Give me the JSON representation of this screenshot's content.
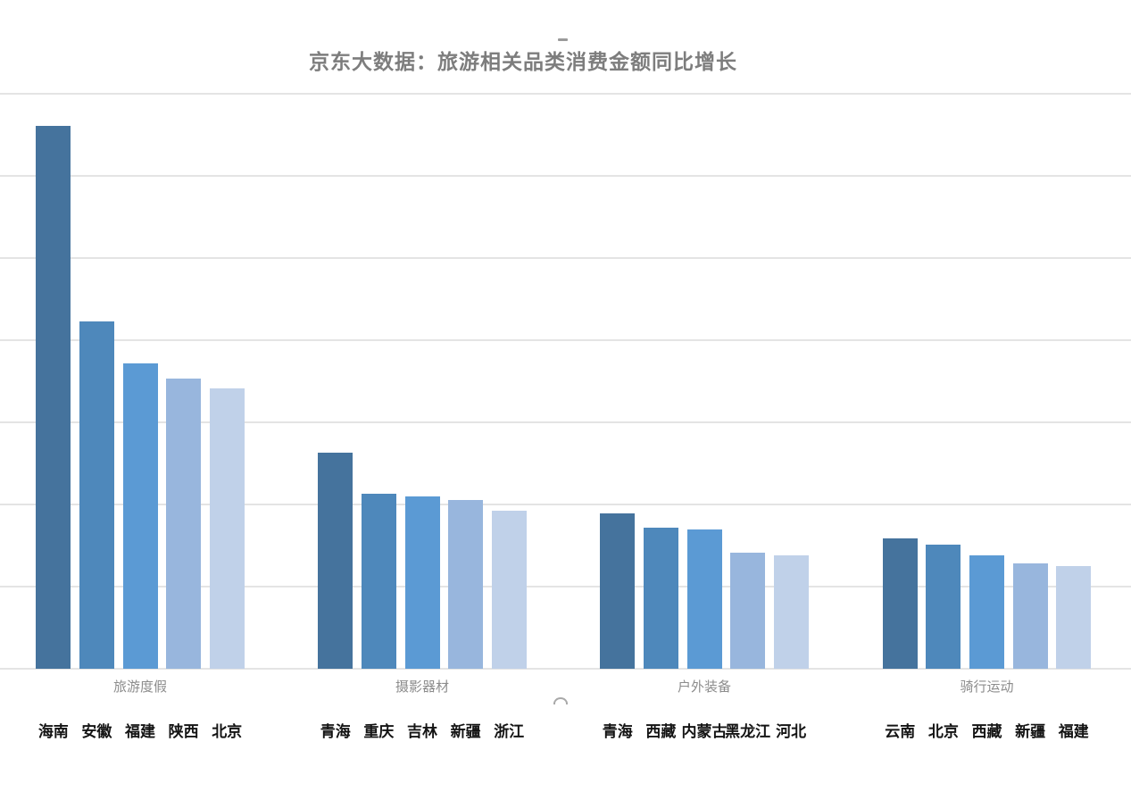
{
  "chart": {
    "title": "京东大数据：旅游相关品类消费金额同比增长",
    "title_color": "#7d7d7d",
    "background_color": "#ffffff",
    "gridline_color": "#e4e4e4",
    "category_label_color": "#8c8c8c",
    "bar_label_color": "#141414",
    "bar_palette": [
      "#45739D",
      "#4E88BB",
      "#5B9AD4",
      "#98B6DD",
      "#C0D1E9"
    ],
    "artifacts": {
      "dash_mark": "-",
      "arc_mark": "⌒"
    }
  },
  "chart_data": {
    "type": "bar",
    "title": "京东大数据：旅游相关品类消费金额同比增长",
    "xlabel": "",
    "ylabel": "",
    "y_axis_tick_labels_visible": false,
    "value_units": "gridline-units (no numeric axis shown; 1 unit = one gridline interval)",
    "ylim": [
      0,
      7
    ],
    "gridline_count": 8,
    "grid": true,
    "legend": false,
    "groups": [
      {
        "category": "旅游度假",
        "bars": [
          {
            "label": "海南",
            "value": 6.61
          },
          {
            "label": "安徽",
            "value": 4.23
          },
          {
            "label": "福建",
            "value": 3.72
          },
          {
            "label": "陕西",
            "value": 3.53
          },
          {
            "label": "北京",
            "value": 3.41
          }
        ]
      },
      {
        "category": "摄影器材",
        "bars": [
          {
            "label": "青海",
            "value": 2.63
          },
          {
            "label": "重庆",
            "value": 2.13
          },
          {
            "label": "吉林",
            "value": 2.1
          },
          {
            "label": "新疆",
            "value": 2.05
          },
          {
            "label": "浙江",
            "value": 1.92
          }
        ]
      },
      {
        "category": "户外装备",
        "bars": [
          {
            "label": "青海",
            "value": 1.89
          },
          {
            "label": "西藏",
            "value": 1.72
          },
          {
            "label": "内蒙古",
            "value": 1.7
          },
          {
            "label": "黑龙江",
            "value": 1.41
          },
          {
            "label": "河北",
            "value": 1.38
          }
        ]
      },
      {
        "category": "骑行运动",
        "bars": [
          {
            "label": "云南",
            "value": 1.59
          },
          {
            "label": "北京",
            "value": 1.51
          },
          {
            "label": "西藏",
            "value": 1.38
          },
          {
            "label": "新疆",
            "value": 1.28
          },
          {
            "label": "福建",
            "value": 1.25
          }
        ]
      }
    ]
  }
}
